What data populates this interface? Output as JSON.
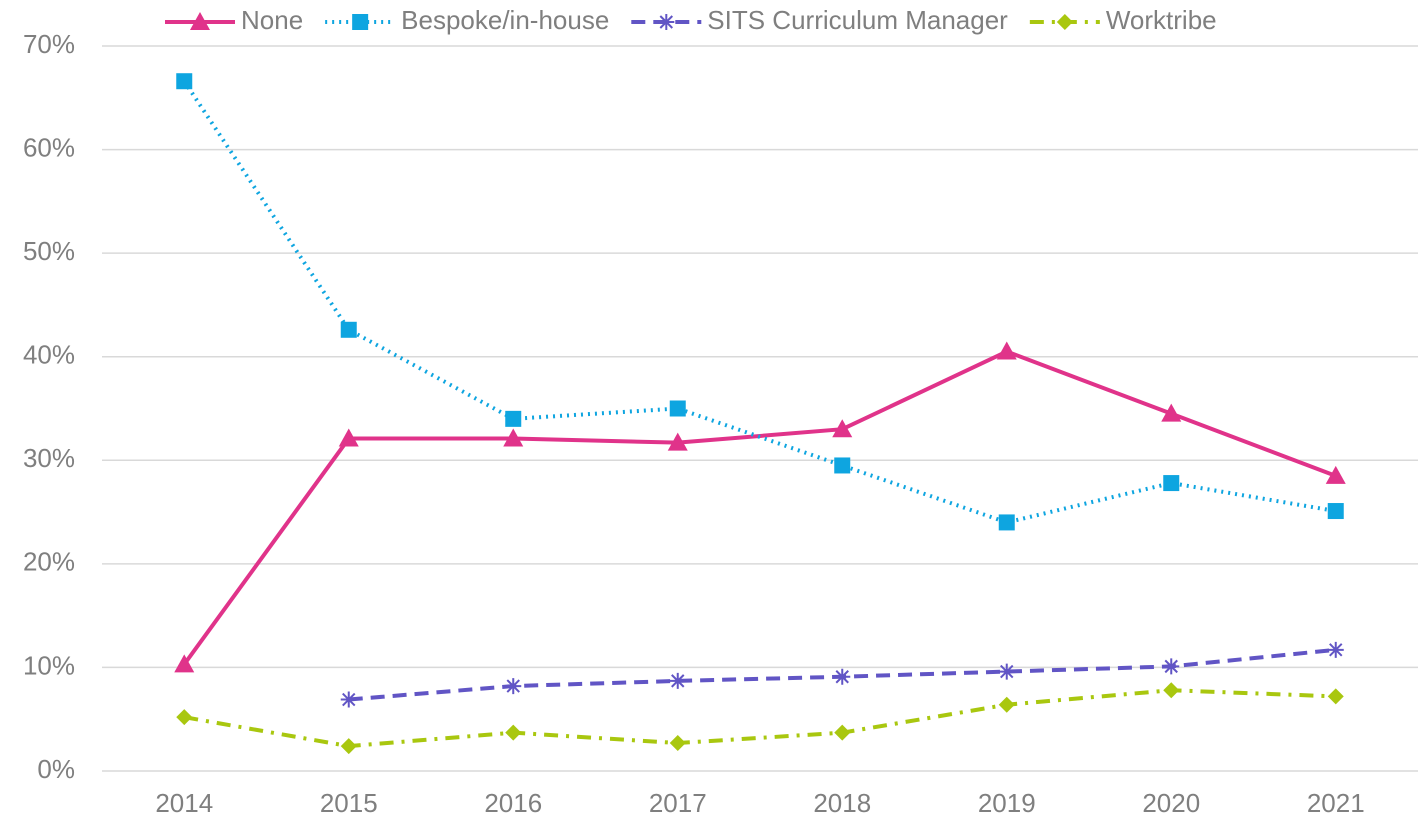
{
  "chart_data": {
    "type": "line",
    "categories": [
      "2014",
      "2015",
      "2016",
      "2017",
      "2018",
      "2019",
      "2020",
      "2021"
    ],
    "series": [
      {
        "name": "None",
        "color": "#e0338a",
        "marker": "triangle",
        "dash": "solid",
        "values": [
          10.3,
          32.1,
          32.1,
          31.7,
          33.0,
          40.5,
          34.5,
          28.5
        ]
      },
      {
        "name": "Bespoke/in-house",
        "color": "#0ea5e0",
        "marker": "square",
        "dash": "dotted",
        "values": [
          66.6,
          42.6,
          34.0,
          35.0,
          29.5,
          24.0,
          27.8,
          25.1
        ]
      },
      {
        "name": "SITS Curriculum Manager",
        "color": "#6155c5",
        "marker": "asterisk",
        "dash": "dashed",
        "values": [
          null,
          6.9,
          8.2,
          8.7,
          9.1,
          9.6,
          10.1,
          11.7
        ]
      },
      {
        "name": "Worktribe",
        "color": "#a9c70f",
        "marker": "diamond",
        "dash": "dashdot",
        "values": [
          5.2,
          2.4,
          3.7,
          2.7,
          3.7,
          6.4,
          7.8,
          7.2
        ]
      }
    ],
    "ylim": [
      0,
      70
    ],
    "yticks": [
      {
        "value": 0,
        "label": "0%"
      },
      {
        "value": 10,
        "label": "10%"
      },
      {
        "value": 20,
        "label": "20%"
      },
      {
        "value": 30,
        "label": "30%"
      },
      {
        "value": 40,
        "label": "40%"
      },
      {
        "value": 50,
        "label": "50%"
      },
      {
        "value": 60,
        "label": "60%"
      },
      {
        "value": 70,
        "label": "70%"
      }
    ],
    "grid": true,
    "legend": "top"
  }
}
